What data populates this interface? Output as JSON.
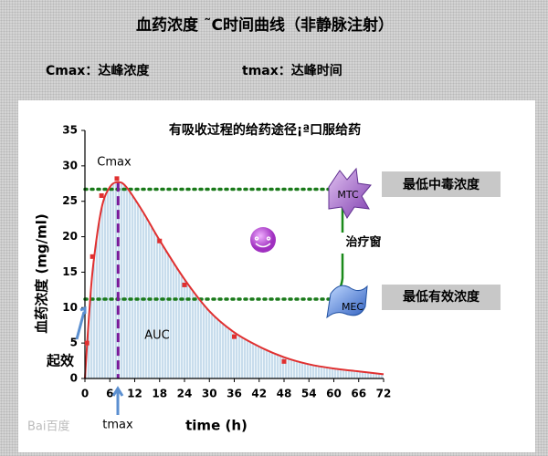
{
  "header": {
    "title": "血药浓度 ˜C时间曲线（非静脉注射）",
    "defs": [
      "Cmax：达峰浓度",
      "tmax：达峰时间"
    ]
  },
  "chart_data": {
    "type": "scatter",
    "title": "有吸收过程的给药途径¡ª口服给药",
    "xlabel": "time (h)",
    "ylabel": "血药浓度 (mg/ml)",
    "x": [
      0.5,
      1.8,
      4,
      7.7,
      18,
      24,
      36,
      48
    ],
    "values": [
      5,
      17.2,
      25.8,
      28.2,
      19.4,
      13.2,
      5.9,
      2.4
    ],
    "color": "#e03030",
    "curve": {
      "color": "#e03030",
      "x": [
        0,
        1,
        2,
        4,
        6,
        8,
        10,
        14,
        18,
        24,
        30,
        36,
        42,
        48,
        54,
        60,
        66,
        72
      ],
      "values": [
        0,
        9,
        16,
        24,
        27,
        27.7,
        27,
        23.5,
        19.5,
        14,
        9.5,
        6.5,
        4.5,
        3,
        2,
        1.4,
        1,
        0.6
      ]
    },
    "xlim": [
      0,
      72
    ],
    "ylim": [
      0,
      35
    ],
    "xticks": [
      0,
      6,
      12,
      18,
      24,
      30,
      36,
      42,
      48,
      54,
      60,
      66,
      72
    ],
    "yticks": [
      0,
      5,
      10,
      15,
      20,
      25,
      30,
      35
    ],
    "levels": [
      {
        "label": "MTC",
        "value": 26.7,
        "note": "最低中毒浓度"
      },
      {
        "label": "MEC",
        "value": 11.2,
        "note": "最低有效浓度"
      }
    ],
    "level_color": "#1a7a1a",
    "tmax": {
      "value": 8,
      "label": "tmax",
      "color": "#7a1a9a"
    },
    "peak_label": "Cmax",
    "area_label": "AUC",
    "onset_label": "起效",
    "window_label": "治疗窗"
  },
  "watermark": "Bai百度"
}
